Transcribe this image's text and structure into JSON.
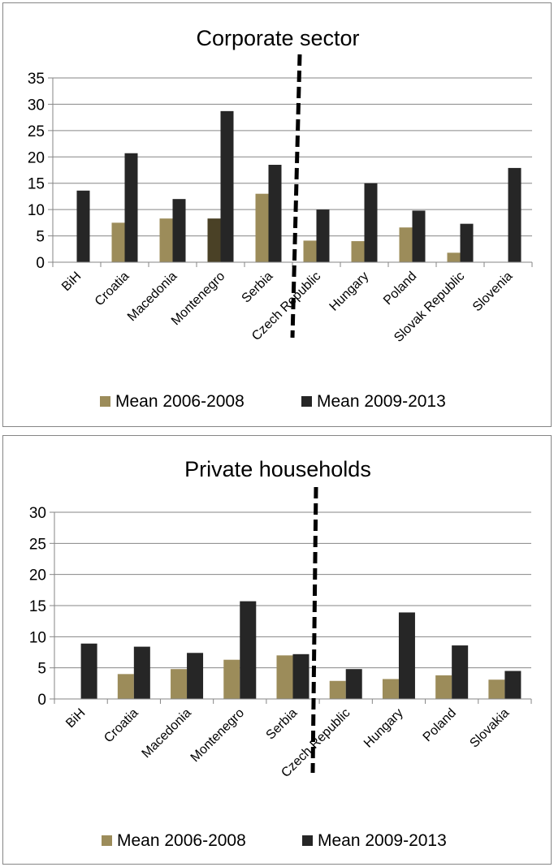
{
  "colors": {
    "s1": "#9c8c5a",
    "s2": "#262626",
    "s1_montenegro_corp": "#4a4126",
    "axis": "#868686",
    "grid": "#868686",
    "divider": "#000000"
  },
  "chart_data": [
    {
      "type": "bar",
      "title": "Corporate sector",
      "xlabel": "",
      "ylabel": "",
      "ylim": [
        0,
        35
      ],
      "yticks": [
        "0",
        "5",
        "10",
        "15",
        "20",
        "25",
        "30",
        "35"
      ],
      "categories": [
        "BiH",
        "Croatia",
        "Macedonia",
        "Montenegro",
        "Serbia",
        "Czech Republic",
        "Hungary",
        "Poland",
        "Slovak Republic",
        "Slovenia"
      ],
      "series": [
        {
          "name": "Mean 2006-2008",
          "values": [
            null,
            7.5,
            8.3,
            8.3,
            13.0,
            4.1,
            4.0,
            6.6,
            1.8,
            null
          ]
        },
        {
          "name": "Mean 2009-2013",
          "values": [
            13.6,
            20.7,
            12.0,
            28.7,
            18.5,
            10.0,
            15.0,
            9.8,
            7.3,
            17.9
          ]
        }
      ],
      "grid": true,
      "legend": "bottom",
      "divider_after_category": "Serbia"
    },
    {
      "type": "bar",
      "title": "Private households",
      "xlabel": "",
      "ylabel": "",
      "ylim": [
        0,
        30
      ],
      "yticks": [
        "0",
        "5",
        "10",
        "15",
        "20",
        "25",
        "30"
      ],
      "categories": [
        "BiH",
        "Croatia",
        "Macedonia",
        "Montenegro",
        "Serbia",
        "Czech Republic",
        "Hungary",
        "Poland",
        "Slovakia"
      ],
      "series": [
        {
          "name": "Mean 2006-2008",
          "values": [
            null,
            4.0,
            4.8,
            6.3,
            7.0,
            2.9,
            3.2,
            3.8,
            3.1
          ]
        },
        {
          "name": "Mean 2009-2013",
          "values": [
            8.9,
            8.4,
            7.4,
            15.7,
            7.2,
            4.8,
            13.9,
            8.6,
            4.5
          ]
        }
      ],
      "grid": true,
      "legend": "bottom",
      "divider_after_category": "Serbia"
    }
  ]
}
